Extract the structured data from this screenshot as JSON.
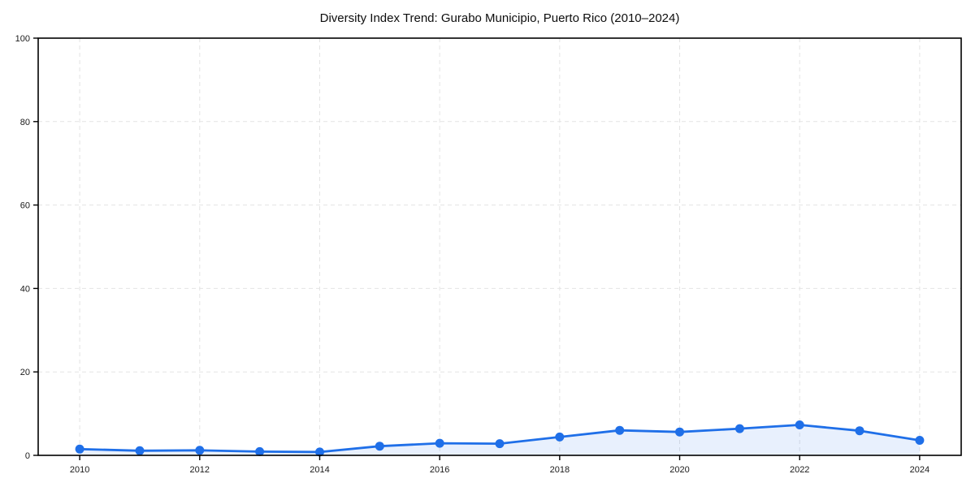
{
  "page": {
    "background_color": "#ffffff"
  },
  "chart_data": {
    "type": "line",
    "title": "Diversity Index Trend: Gurabo Municipio, Puerto Rico (2010–2024)",
    "x": [
      2010,
      2011,
      2012,
      2013,
      2014,
      2015,
      2016,
      2017,
      2018,
      2019,
      2020,
      2021,
      2022,
      2023,
      2024
    ],
    "series": [
      {
        "name": "Diversity Index",
        "values": [
          1.5,
          1.1,
          1.2,
          0.9,
          0.8,
          2.2,
          2.9,
          2.8,
          4.4,
          6.0,
          5.6,
          6.4,
          7.3,
          5.9,
          3.6
        ]
      }
    ],
    "xlabel": "",
    "ylabel": "",
    "xlim": [
      2009.3,
      2024.7
    ],
    "ylim": [
      0,
      100
    ],
    "xticks": [
      2010,
      2012,
      2014,
      2016,
      2018,
      2020,
      2022,
      2024
    ],
    "yticks": [
      0,
      20,
      40,
      60,
      80,
      100
    ],
    "grid": true,
    "grid_style": "dashed",
    "legend": "none",
    "marker": "circle",
    "area_fill": true,
    "colors": {
      "line": "#1f6fe8",
      "marker": "#1f6fe8",
      "area_fill": "#1f6fe8",
      "area_fill_opacity": 0.1,
      "grid": "#e4e4e4",
      "spine": "#000000",
      "tick_text": "#1a1a1a",
      "title_text": "#0d0d0d",
      "background": "#ffffff"
    }
  }
}
